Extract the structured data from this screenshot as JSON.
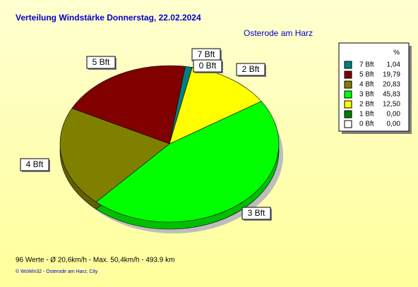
{
  "chart_data": {
    "type": "pie",
    "title": "Verteilung Windstärke  Donnerstag, 22.02.2024",
    "subtitle": "Osterode am Harz",
    "legend_title": "%",
    "categories": [
      "7 Bft",
      "5 Bft",
      "4 Bft",
      "3 Bft",
      "2 Bft",
      "1 Bft",
      "0 Bft"
    ],
    "values": [
      1.04,
      19.79,
      20.83,
      45.83,
      12.5,
      0,
      0
    ],
    "value_labels": [
      "1,04",
      "19,79",
      "20,83",
      "45,83",
      "12,50",
      "0,00",
      "0,00"
    ],
    "colors": [
      "#008080",
      "#800000",
      "#808000",
      "#00ff00",
      "#ffff00",
      "#008000",
      "#ffffff"
    ],
    "legend": "right",
    "footer": "96 Werte   -   Ø 20,6km/h   -  Max. 50,4km/h   -   493.9 km",
    "credits": "© WsWin32   -   Osterode am Harz, City"
  }
}
